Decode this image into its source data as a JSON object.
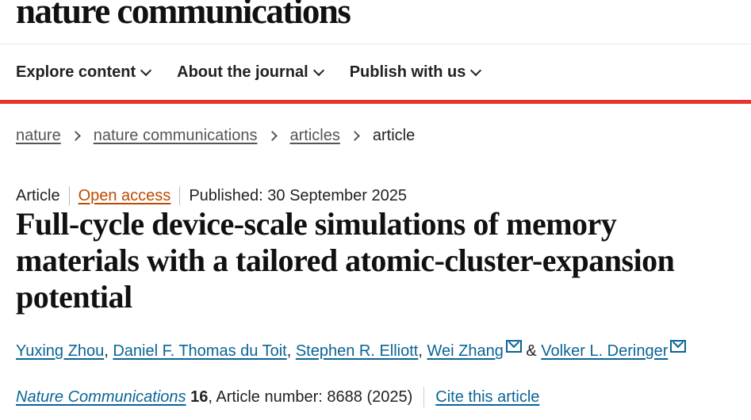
{
  "header": {
    "logo": "nature communications"
  },
  "nav": [
    {
      "label": "Explore content"
    },
    {
      "label": "About the journal"
    },
    {
      "label": "Publish with us"
    }
  ],
  "breadcrumb": [
    "nature",
    "nature communications",
    "articles",
    "article"
  ],
  "meta": {
    "type": "Article",
    "access": "Open access",
    "published": "Published: 30 September 2025"
  },
  "title": "Full-cycle device-scale simulations of memory materials with a tailored atomic-cluster-expansion potential",
  "authors": [
    "Yuxing Zhou",
    "Daniel F. Thomas du Toit",
    "Stephen R. Elliott",
    "Wei Zhang",
    "Volker L. Deringer"
  ],
  "authors_sep": {
    "comma": ", ",
    "amp": " & "
  },
  "citation": {
    "journal": "Nature Communications",
    "volume": "16",
    "rest": ", Article number: 8688 (2025)",
    "cite": "Cite this article"
  },
  "colors": {
    "accent_red": "#e8332a",
    "link": "#0a6496",
    "open_access": "#c04b00"
  }
}
